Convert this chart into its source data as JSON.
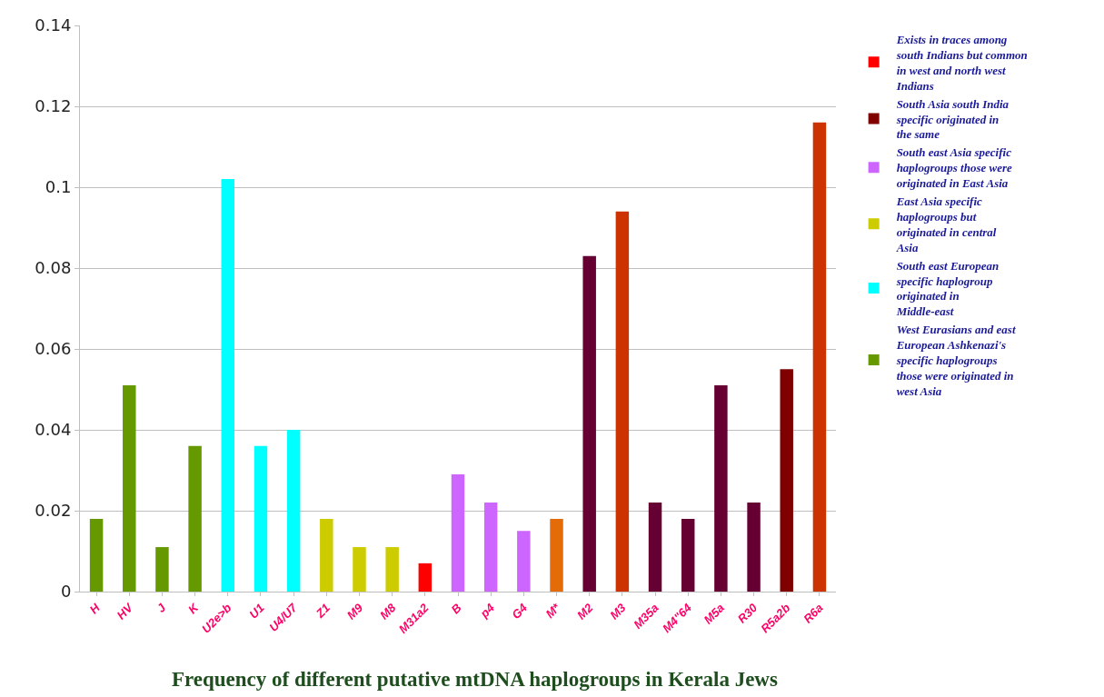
{
  "chart_data": {
    "type": "bar",
    "title": "Frequency of different putative mtDNA haplogroups in Kerala Jews",
    "categories": [
      "H",
      "HV",
      "J",
      "K",
      "U2e>b",
      "U1",
      "U4/U7",
      "Z1",
      "M9",
      "M8",
      "M31a2",
      "B",
      "p4",
      "G4",
      "M*",
      "M2",
      "M3",
      "M35a",
      "M4\"64",
      "M5a",
      "R30",
      "R5a2b",
      "R6a"
    ],
    "series": [
      {
        "name": "Exists in traces among south Indians but common in west and north west Indians",
        "color": "#ff0000",
        "values": [
          null,
          null,
          null,
          null,
          null,
          null,
          null,
          null,
          null,
          null,
          0.007,
          null,
          null,
          null,
          null,
          null,
          null,
          null,
          null,
          null,
          null,
          null,
          null
        ]
      },
      {
        "name": "South Asia south India specific originated in the same",
        "color": "#800000",
        "values": [
          null,
          null,
          null,
          null,
          null,
          null,
          null,
          null,
          null,
          null,
          null,
          null,
          null,
          null,
          null,
          null,
          null,
          null,
          null,
          null,
          null,
          0.055,
          null
        ]
      },
      {
        "name": "South east Asia specific haplogroups those were originated in East Asia",
        "color": "#cc66ff",
        "values": [
          null,
          null,
          null,
          null,
          null,
          null,
          null,
          null,
          null,
          null,
          null,
          0.029,
          0.022,
          0.015,
          null,
          null,
          null,
          null,
          null,
          null,
          null,
          null,
          null
        ]
      },
      {
        "name": "East Asia specific haplogroups but originated in central Asia",
        "color": "#cccc00",
        "values": [
          null,
          null,
          null,
          null,
          null,
          null,
          null,
          0.018,
          0.011,
          0.011,
          null,
          null,
          null,
          null,
          null,
          null,
          null,
          null,
          null,
          null,
          null,
          null,
          null
        ]
      },
      {
        "name": "South east European specific haplogroup originated in Middle-east",
        "color": "#00ffff",
        "values": [
          null,
          null,
          null,
          null,
          0.102,
          0.036,
          0.04,
          null,
          null,
          null,
          null,
          null,
          null,
          null,
          null,
          null,
          null,
          null,
          null,
          null,
          null,
          null,
          null
        ]
      },
      {
        "name": "West Eurasians and east European Ashkenazi's specific haplogroups those were originated in west Asia",
        "color": "#669900",
        "values": [
          0.018,
          0.051,
          0.011,
          0.036,
          null,
          null,
          null,
          null,
          null,
          null,
          null,
          null,
          null,
          null,
          null,
          null,
          null,
          null,
          null,
          null,
          null,
          null,
          null
        ]
      },
      {
        "color": "#e36c09",
        "values": [
          null,
          null,
          null,
          null,
          null,
          null,
          null,
          null,
          null,
          null,
          null,
          null,
          null,
          null,
          0.018,
          null,
          null,
          null,
          null,
          null,
          null,
          null,
          null
        ]
      },
      {
        "color": "#cc3300",
        "values": [
          null,
          null,
          null,
          null,
          null,
          null,
          null,
          null,
          null,
          null,
          null,
          null,
          null,
          null,
          null,
          null,
          0.094,
          null,
          null,
          null,
          null,
          null,
          0.116
        ]
      },
      {
        "color": "#660033",
        "values": [
          null,
          null,
          null,
          null,
          null,
          null,
          null,
          null,
          null,
          null,
          null,
          null,
          null,
          null,
          null,
          0.083,
          null,
          0.022,
          0.018,
          0.051,
          0.022,
          null,
          null
        ]
      }
    ],
    "ylim": [
      0,
      0.14
    ],
    "yticks": [
      0,
      0.02,
      0.04,
      0.06,
      0.08,
      0.1,
      0.12,
      0.14
    ],
    "grid": "y",
    "legend": "right"
  }
}
